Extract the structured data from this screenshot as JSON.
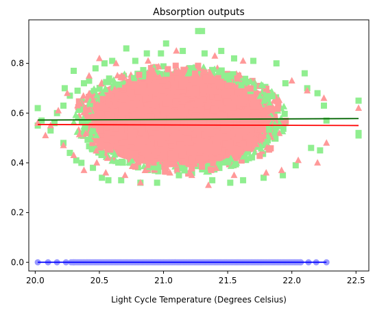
{
  "chart_data": {
    "type": "scatter",
    "title": "Absorption outputs",
    "xlabel": "Light Cycle Temperature (Degrees Celsius)",
    "ylabel": "",
    "xlim": [
      19.95,
      22.6
    ],
    "ylim": [
      -0.035,
      0.975
    ],
    "xticks": [
      {
        "value": 20.0,
        "label": "20.0"
      },
      {
        "value": 20.5,
        "label": "20.5"
      },
      {
        "value": 21.0,
        "label": "21.0"
      },
      {
        "value": 21.5,
        "label": "21.5"
      },
      {
        "value": 22.0,
        "label": "22.0"
      },
      {
        "value": 22.5,
        "label": "22.5"
      }
    ],
    "yticks": [
      {
        "value": 0.0,
        "label": "0.0"
      },
      {
        "value": 0.2,
        "label": "0.2"
      },
      {
        "value": 0.4,
        "label": "0.4"
      },
      {
        "value": 0.6,
        "label": "0.6"
      },
      {
        "value": 0.8,
        "label": "0.8"
      }
    ],
    "grid": false,
    "legend": "none",
    "series": [
      {
        "marker": "square",
        "color": "#90ee90",
        "points": [
          [
            20.02,
            0.62
          ],
          [
            20.02,
            0.55
          ],
          [
            20.05,
            0.57
          ],
          [
            20.12,
            0.53
          ],
          [
            20.15,
            0.56
          ],
          [
            20.17,
            0.6
          ],
          [
            20.22,
            0.48
          ],
          [
            20.22,
            0.63
          ],
          [
            20.23,
            0.7
          ],
          [
            20.27,
            0.44
          ],
          [
            20.27,
            0.67
          ],
          [
            20.3,
            0.77
          ],
          [
            20.32,
            0.41
          ],
          [
            20.33,
            0.69
          ],
          [
            20.36,
            0.4
          ],
          [
            20.38,
            0.72
          ],
          [
            20.42,
            0.73
          ],
          [
            20.45,
            0.38
          ],
          [
            20.47,
            0.78
          ],
          [
            20.52,
            0.34
          ],
          [
            20.54,
            0.8
          ],
          [
            20.57,
            0.33
          ],
          [
            20.6,
            0.81
          ],
          [
            20.67,
            0.33
          ],
          [
            20.71,
            0.86
          ],
          [
            20.78,
            0.81
          ],
          [
            20.82,
            0.32
          ],
          [
            20.87,
            0.84
          ],
          [
            20.95,
            0.32
          ],
          [
            20.98,
            0.84
          ],
          [
            21.02,
            0.88
          ],
          [
            21.12,
            0.35
          ],
          [
            21.15,
            0.85
          ],
          [
            21.27,
            0.93
          ],
          [
            21.3,
            0.93
          ],
          [
            21.32,
            0.84
          ],
          [
            21.38,
            0.33
          ],
          [
            21.45,
            0.85
          ],
          [
            21.52,
            0.32
          ],
          [
            21.55,
            0.82
          ],
          [
            21.62,
            0.33
          ],
          [
            21.7,
            0.81
          ],
          [
            21.78,
            0.34
          ],
          [
            21.88,
            0.8
          ],
          [
            21.93,
            0.35
          ],
          [
            21.95,
            0.72
          ],
          [
            22.03,
            0.39
          ],
          [
            22.1,
            0.76
          ],
          [
            22.12,
            0.7
          ],
          [
            22.15,
            0.46
          ],
          [
            22.2,
            0.68
          ],
          [
            22.22,
            0.45
          ],
          [
            22.25,
            0.63
          ],
          [
            22.27,
            0.57
          ],
          [
            22.52,
            0.65
          ],
          [
            22.52,
            0.52
          ],
          [
            22.52,
            0.51
          ]
        ]
      },
      {
        "marker": "triangle",
        "color": "#ff9999",
        "points": [
          [
            20.02,
            0.56
          ],
          [
            20.08,
            0.51
          ],
          [
            20.12,
            0.55
          ],
          [
            20.18,
            0.61
          ],
          [
            20.22,
            0.47
          ],
          [
            20.25,
            0.68
          ],
          [
            20.3,
            0.43
          ],
          [
            20.33,
            0.63
          ],
          [
            20.38,
            0.37
          ],
          [
            20.42,
            0.75
          ],
          [
            20.48,
            0.4
          ],
          [
            20.5,
            0.82
          ],
          [
            20.55,
            0.36
          ],
          [
            20.63,
            0.8
          ],
          [
            20.7,
            0.35
          ],
          [
            20.82,
            0.32
          ],
          [
            20.88,
            0.81
          ],
          [
            21.05,
            0.36
          ],
          [
            21.1,
            0.85
          ],
          [
            21.22,
            0.35
          ],
          [
            21.35,
            0.31
          ],
          [
            21.4,
            0.83
          ],
          [
            21.55,
            0.35
          ],
          [
            21.62,
            0.81
          ],
          [
            21.8,
            0.36
          ],
          [
            21.92,
            0.37
          ],
          [
            22.0,
            0.73
          ],
          [
            22.05,
            0.41
          ],
          [
            22.12,
            0.69
          ],
          [
            22.2,
            0.4
          ],
          [
            22.25,
            0.66
          ],
          [
            22.27,
            0.48
          ],
          [
            22.52,
            0.62
          ]
        ]
      },
      {
        "marker": "circle",
        "color": "#9999ff",
        "points": [
          [
            20.02,
            0.0
          ],
          [
            20.1,
            0.0
          ],
          [
            20.17,
            0.0
          ],
          [
            20.24,
            0.0
          ],
          [
            20.3,
            0.0
          ],
          [
            22.07,
            0.0
          ],
          [
            22.13,
            0.0
          ],
          [
            22.19,
            0.0
          ],
          [
            22.27,
            0.0
          ]
        ],
        "dense_range": [
          20.28,
          22.08
        ]
      }
    ],
    "cloud": {
      "center_x": 21.13,
      "center_y": 0.575,
      "radius_x": 0.82,
      "radius_y": 0.215,
      "colors": [
        "#ff9999",
        "#90ee90"
      ]
    },
    "fit_lines": [
      {
        "color": "#006400",
        "x": [
          20.02,
          22.52
        ],
        "y": [
          0.572,
          0.578
        ]
      },
      {
        "color": "#ff0000",
        "x": [
          20.02,
          22.52
        ],
        "y": [
          0.554,
          0.55
        ]
      },
      {
        "color": "#0000ff",
        "x": [
          20.02,
          22.27
        ],
        "y": [
          0.0,
          0.0
        ]
      }
    ]
  }
}
